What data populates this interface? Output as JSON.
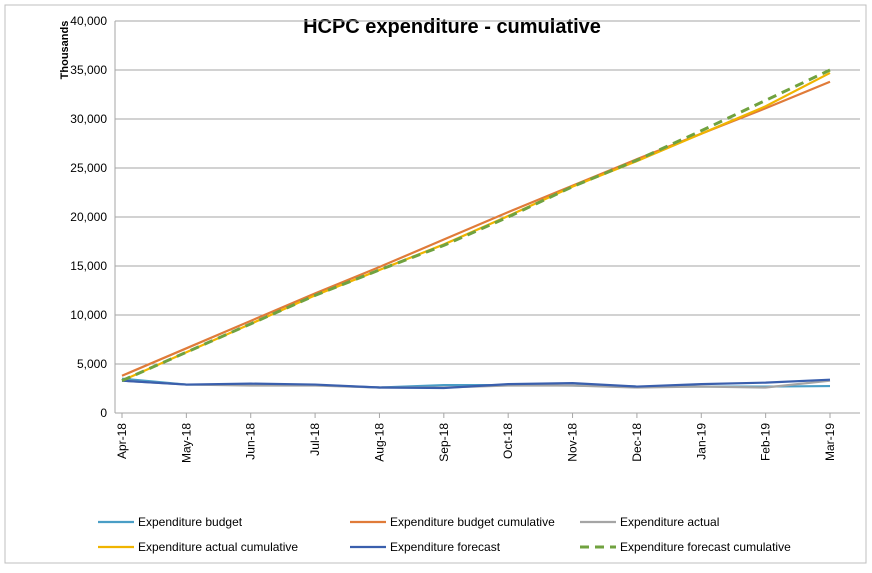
{
  "chart_data": {
    "type": "line",
    "title": "HCPC expenditure - cumulative",
    "y_label": "Thousands",
    "categories": [
      "Apr-18",
      "May-18",
      "Jun-18",
      "Jul-18",
      "Aug-18",
      "Sep-18",
      "Oct-18",
      "Nov-18",
      "Dec-18",
      "Jan-19",
      "Feb-19",
      "Mar-19"
    ],
    "ylim": [
      0,
      40000
    ],
    "yticks": [
      0,
      {
        "value": 5000,
        "label": "5,000"
      },
      {
        "value": 10000,
        "label": "10,000"
      },
      {
        "value": 15000,
        "label": "15,000"
      },
      {
        "value": 20000,
        "label": "20,000"
      },
      {
        "value": 25000,
        "label": "25,000"
      },
      {
        "value": 30000,
        "label": "30,000"
      },
      {
        "value": 35000,
        "label": "35,000"
      },
      {
        "value": 40000,
        "label": "40,000"
      }
    ],
    "grid": true,
    "legend": "bottom",
    "series": [
      {
        "name": "Expenditure budget",
        "color": "#4a9ec6",
        "values": [
          3500,
          2900,
          2900,
          2850,
          2600,
          2850,
          2850,
          2800,
          2700,
          2700,
          2700,
          2750
        ]
      },
      {
        "name": "Expenditure budget cumulative",
        "color": "#e07b39",
        "values": [
          3800,
          6600,
          9400,
          12200,
          14900,
          17700,
          20500,
          23200,
          25900,
          28500,
          31100,
          33800
        ]
      },
      {
        "name": "Expenditure actual",
        "color": "#a5a5a5",
        "values": [
          3300,
          2900,
          2800,
          2800,
          2600,
          2600,
          2800,
          2800,
          2600,
          2700,
          2600,
          3300
        ]
      },
      {
        "name": "Expenditure actual cumulative",
        "color": "#f0b400",
        "values": [
          3300,
          6200,
          9100,
          12000,
          14600,
          17200,
          20100,
          23100,
          25700,
          28500,
          31300,
          34700
        ]
      },
      {
        "name": "Expenditure forecast",
        "color": "#3a5fad",
        "values": [
          3300,
          2900,
          3000,
          2900,
          2600,
          2550,
          2950,
          3050,
          2700,
          2950,
          3100,
          3400
        ]
      },
      {
        "name": "Expenditure forecast cumulative",
        "color": "#70a23f",
        "dashed": true,
        "values": [
          3300,
          6200,
          9100,
          12000,
          14600,
          17100,
          20000,
          23100,
          25800,
          28800,
          31900,
          35000
        ]
      }
    ]
  }
}
